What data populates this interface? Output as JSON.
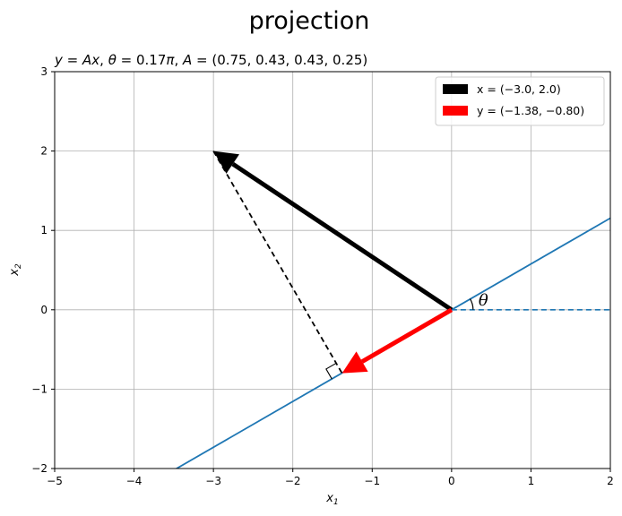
{
  "figure": {
    "suptitle": "projection"
  },
  "chart_data": {
    "type": "line",
    "title": "y = Ax, θ = 0.17π, A = (0.75, 0.43, 0.43, 0.25)",
    "title_parts": {
      "y": "y",
      "eq1": " = ",
      "A": "A",
      "x": "x",
      "comma1": ", ",
      "theta": "θ",
      "eq2": " = 0.17",
      "pi": "π",
      "comma2": ", ",
      "A2": "A",
      "eq3": " = (0.75, 0.43, 0.43, 0.25)"
    },
    "xlabel": "x1",
    "ylabel": "x2",
    "xlim": [
      -5,
      2
    ],
    "ylim": [
      -2,
      3
    ],
    "xticks": [
      -5,
      -4,
      -3,
      -2,
      -1,
      0,
      1,
      2
    ],
    "yticks": [
      -2,
      -1,
      0,
      1,
      2,
      3
    ],
    "xtick_labels": [
      "−5",
      "−4",
      "−3",
      "−2",
      "−1",
      "0",
      "1",
      "2"
    ],
    "ytick_labels": [
      "−2",
      "−1",
      "0",
      "1",
      "2",
      "3"
    ],
    "grid": true,
    "legend_position": "upper-right",
    "theta_label": "θ",
    "theta_pi_fraction": 0.17,
    "projection_line": {
      "slope": 0.5774,
      "color": "#1f77b4"
    },
    "reference_line": {
      "from": [
        0,
        0
      ],
      "to": [
        2,
        0
      ],
      "style": "dashed",
      "color": "#1f77b4"
    },
    "vectors": [
      {
        "name": "x",
        "legend": "x = (−3.0, 2.0)",
        "from": [
          0,
          0
        ],
        "to": [
          -3.0,
          2.0
        ],
        "color": "#000000"
      },
      {
        "name": "y",
        "legend": "y = (−1.38, −0.80)",
        "from": [
          0,
          0
        ],
        "to": [
          -1.38,
          -0.8
        ],
        "color": "#ff0000"
      }
    ],
    "projection_segment": {
      "from": [
        -3.0,
        2.0
      ],
      "to": [
        -1.38,
        -0.8
      ],
      "style": "dashed",
      "color": "#000000"
    }
  }
}
